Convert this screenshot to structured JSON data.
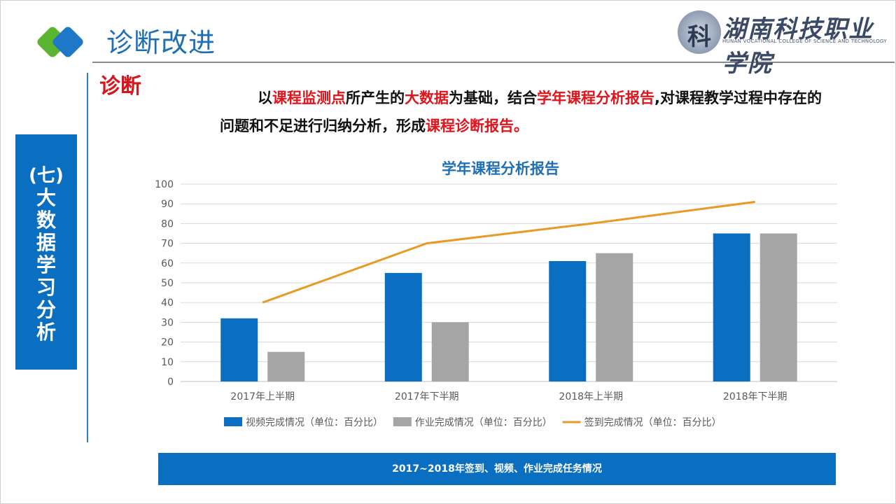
{
  "header": {
    "title": "诊断改进",
    "school_name_cn": "湖南科技职业学院",
    "school_name_en": "HUNAN VOCATIONAL COLLEGE OF SCIENCE AND TECHNOLOGY"
  },
  "side": {
    "number": "(七)",
    "text": "大数据学习分析"
  },
  "section": {
    "label": "诊断",
    "desc_parts": [
      {
        "text": "以",
        "red": false
      },
      {
        "text": "课程监测点",
        "red": true
      },
      {
        "text": "所产生的",
        "red": false
      },
      {
        "text": "大数据",
        "red": true
      },
      {
        "text": "为基础，结合",
        "red": false
      },
      {
        "text": "学年课程分析报告",
        "red": true
      },
      {
        "text": ",对课程教学过程中存在的问题和不足进行归纳分析，形成",
        "red": false
      },
      {
        "text": "课程诊断报告。",
        "red": true
      }
    ]
  },
  "colors": {
    "accent_blue": "#0a6fc0",
    "bar_gray": "#a5a5a5",
    "line_orange": "#e89a24",
    "highlight_red": "#e0141c"
  },
  "chart_data": {
    "type": "bar",
    "title": "学年课程分析报告",
    "categories": [
      "2017年上半期",
      "2017年下半期",
      "2018年上半期",
      "2018年下半期"
    ],
    "series": [
      {
        "name": "视频完成情况（单位：百分比）",
        "type": "bar",
        "color": "#0a6fc0",
        "values": [
          32,
          55,
          61,
          75
        ]
      },
      {
        "name": "作业完成情况（单位：百分比）",
        "type": "bar",
        "color": "#a5a5a5",
        "values": [
          15,
          30,
          65,
          75
        ]
      },
      {
        "name": "签到完成情况（单位：百分比）",
        "type": "line",
        "color": "#e89a24",
        "values": [
          40,
          70,
          80,
          91
        ]
      }
    ],
    "ylim": [
      0,
      100
    ],
    "yticks": [
      0,
      10,
      20,
      30,
      40,
      50,
      60,
      70,
      80,
      90,
      100
    ],
    "grid": true,
    "legend": "bottom"
  },
  "footer": {
    "caption": "2017~2018年签到、视频、作业完成任务情况"
  }
}
